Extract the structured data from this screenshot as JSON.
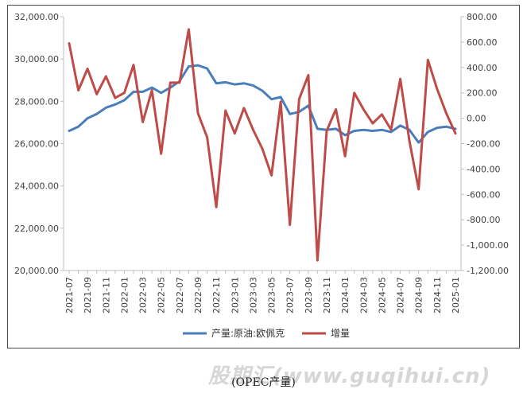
{
  "chart_data": {
    "type": "line",
    "categories": [
      "2021-07",
      "2021-08",
      "2021-09",
      "2021-10",
      "2021-11",
      "2021-12",
      "2022-01",
      "2022-02",
      "2022-03",
      "2022-04",
      "2022-05",
      "2022-06",
      "2022-07",
      "2022-08",
      "2022-09",
      "2022-10",
      "2022-11",
      "2022-12",
      "2023-01",
      "2023-02",
      "2023-03",
      "2023-04",
      "2023-05",
      "2023-06",
      "2023-07",
      "2023-08",
      "2023-09",
      "2023-10",
      "2023-11",
      "2023-12",
      "2024-01",
      "2024-02",
      "2024-03",
      "2024-04",
      "2024-05",
      "2024-06",
      "2024-07",
      "2024-08",
      "2024-09",
      "2024-10",
      "2024-11",
      "2024-12",
      "2025-01"
    ],
    "x_tick_labels": [
      "2021-07",
      "2021-09",
      "2021-11",
      "2022-01",
      "2022-03",
      "2022-05",
      "2022-07",
      "2022-09",
      "2022-11",
      "2023-01",
      "2023-03",
      "2023-05",
      "2023-07",
      "2023-09",
      "2023-11",
      "2024-01",
      "2024-03",
      "2024-05",
      "2024-07",
      "2024-09",
      "2024-11",
      "2025-01"
    ],
    "y_left": {
      "ylim": [
        20000,
        32000
      ],
      "ticks": [
        "20,000.00",
        "22,000.00",
        "24,000.00",
        "26,000.00",
        "28,000.00",
        "30,000.00",
        "32,000.00"
      ]
    },
    "y_right": {
      "ylim": [
        -1200,
        800
      ],
      "ticks": [
        "-1,200.00",
        "-1,000.00",
        "-800.00",
        "-600.00",
        "-400.00",
        "-200.00",
        "0.00",
        "200.00",
        "400.00",
        "600.00",
        "800.00"
      ]
    },
    "grid": "none",
    "legend_position": "bottom",
    "series": [
      {
        "name": "产量:原油:欧佩克",
        "axis": "left",
        "color": "#4a7ebb",
        "values": [
          26600,
          26800,
          27200,
          27400,
          27700,
          27850,
          28050,
          28450,
          28450,
          28650,
          28400,
          28650,
          28950,
          29650,
          29700,
          29550,
          28850,
          28900,
          28800,
          28850,
          28750,
          28500,
          28100,
          28200,
          27400,
          27500,
          27800,
          26700,
          26650,
          26700,
          26400,
          26600,
          26650,
          26600,
          26650,
          26550,
          26850,
          26650,
          26050,
          26550,
          26750,
          26800,
          26700
        ]
      },
      {
        "name": "增量",
        "axis": "right",
        "color": "#be4b48",
        "values": [
          590,
          220,
          390,
          190,
          330,
          160,
          200,
          420,
          -30,
          220,
          -280,
          280,
          280,
          700,
          40,
          -150,
          -700,
          60,
          -120,
          80,
          -90,
          -240,
          -450,
          130,
          -840,
          150,
          340,
          -1120,
          -100,
          70,
          -300,
          200,
          70,
          -40,
          30,
          -90,
          310,
          -180,
          -560,
          460,
          230,
          40,
          -120
        ]
      }
    ]
  },
  "caption": "(OPEC产量)",
  "watermark": "股期汇(www.guqihui.cn)"
}
